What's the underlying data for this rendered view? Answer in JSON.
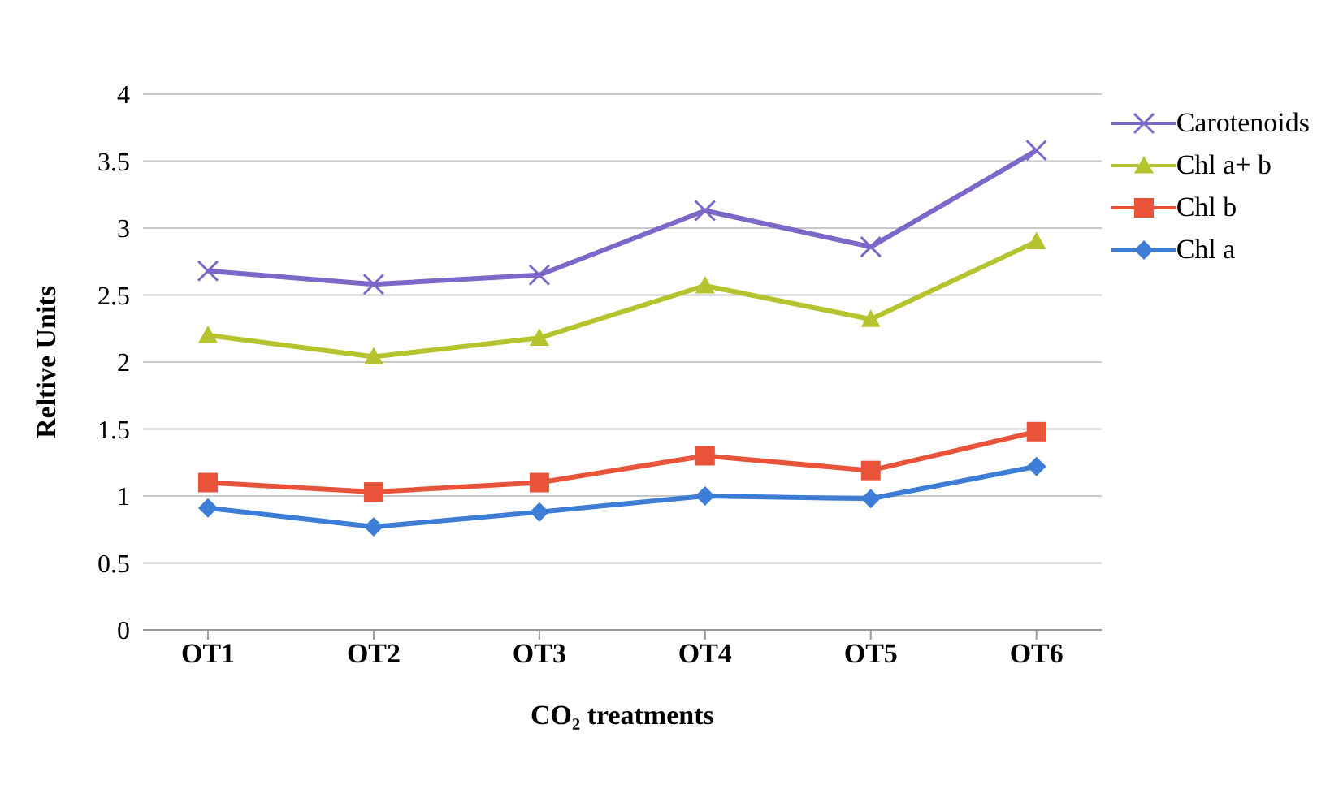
{
  "chart_data": {
    "type": "line",
    "xlabel": "CO₂ treatments",
    "ylabel": "Reltive Units",
    "categories": [
      "OT1",
      "OT2",
      "OT3",
      "OT4",
      "OT5",
      "OT6"
    ],
    "series": [
      {
        "name": "Carotenoids",
        "color": "#7b68c8",
        "marker": "cross",
        "values": [
          2.68,
          2.58,
          2.65,
          3.13,
          2.86,
          3.58
        ]
      },
      {
        "name": "Chl a+ b",
        "color": "#b5c42e",
        "marker": "triangle",
        "values": [
          2.2,
          2.04,
          2.18,
          2.57,
          2.32,
          2.9
        ]
      },
      {
        "name": "Chl b",
        "color": "#e8533a",
        "marker": "square",
        "values": [
          1.1,
          1.03,
          1.1,
          1.3,
          1.19,
          1.48
        ]
      },
      {
        "name": "Chl a",
        "color": "#3d7dd6",
        "marker": "diamond",
        "values": [
          0.91,
          0.77,
          0.88,
          1.0,
          0.98,
          1.22
        ]
      }
    ],
    "ylim": [
      0,
      4
    ],
    "yticks": [
      0,
      0.5,
      1,
      1.5,
      2,
      2.5,
      3,
      3.5,
      4
    ],
    "grid": "y",
    "legend": "right"
  }
}
